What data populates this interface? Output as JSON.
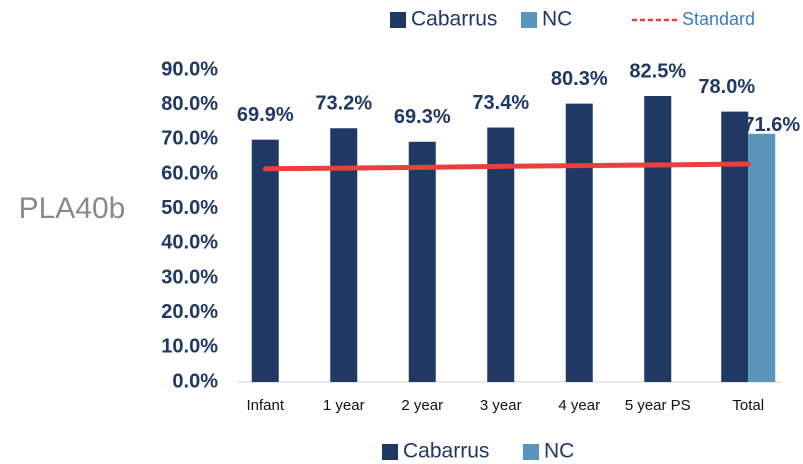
{
  "chart_data": {
    "type": "bar",
    "y_label": "PLA40b",
    "categories": [
      "Infant",
      "1 year",
      "2 year",
      "3 year",
      "4 year",
      "5 year PS",
      "Total"
    ],
    "series": [
      {
        "name": "Cabarrus",
        "color": "#1f3864",
        "values": [
          69.9,
          73.2,
          69.3,
          73.4,
          80.3,
          82.5,
          78.0
        ],
        "value_labels": [
          "69.9%",
          "73.2%",
          "69.3%",
          "73.4%",
          "80.3%",
          "82.5%",
          "78.0%"
        ]
      },
      {
        "name": "NC",
        "color": "#5a94bd",
        "values": [
          null,
          null,
          null,
          null,
          null,
          null,
          71.6
        ],
        "value_labels": [
          null,
          null,
          null,
          null,
          null,
          null,
          "71.6%"
        ]
      },
      {
        "name": "Standard",
        "type": "line",
        "color": "#e8403a",
        "values": [
          61.5,
          61.7,
          61.9,
          62.2,
          62.4,
          62.6,
          62.9
        ]
      }
    ],
    "ylim": [
      0,
      90
    ],
    "yticks": [
      {
        "value": 0,
        "label": "0.0%"
      },
      {
        "value": 10,
        "label": "10.0%"
      },
      {
        "value": 20,
        "label": "20.0%"
      },
      {
        "value": 30,
        "label": "30.0%"
      },
      {
        "value": 40,
        "label": "40.0%"
      },
      {
        "value": 50,
        "label": "50.0%"
      },
      {
        "value": 60,
        "label": "60.0%"
      },
      {
        "value": 70,
        "label": "70.0%"
      },
      {
        "value": 80,
        "label": "80.0%"
      },
      {
        "value": 90,
        "label": "90.0%"
      }
    ],
    "grid": false
  }
}
